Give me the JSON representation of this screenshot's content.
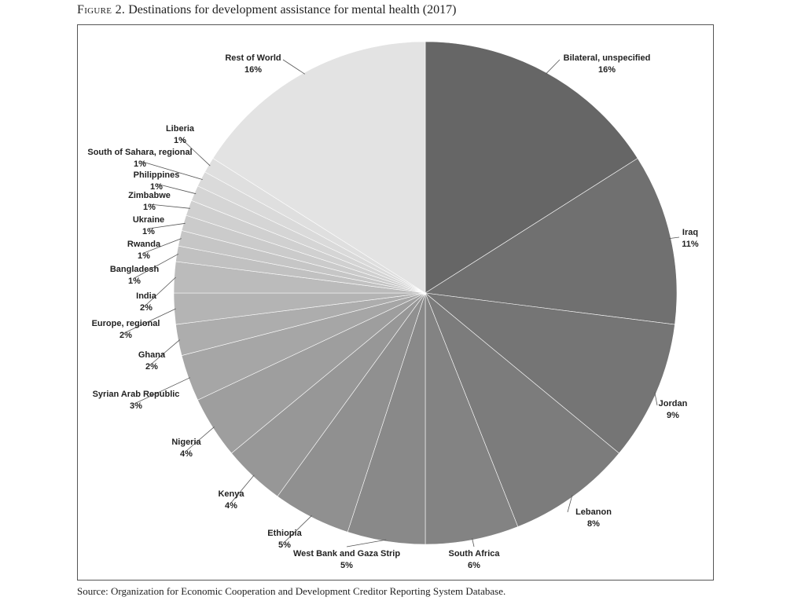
{
  "figure": {
    "label": "Figure 2.",
    "title": "Destinations for development assistance for mental health (2017)",
    "source": "Source: Organization for Economic Cooperation and Development Creditor Reporting System Database."
  },
  "chart_data": {
    "type": "pie",
    "title": "Destinations for development assistance for mental health (2017)",
    "slices": [
      {
        "name": "Bilateral, unspecified",
        "label": "16%",
        "value": 16,
        "color": "#666666"
      },
      {
        "name": "Iraq",
        "label": "11%",
        "value": 11,
        "color": "#707070"
      },
      {
        "name": "Jordan",
        "label": "9%",
        "value": 9,
        "color": "#757575"
      },
      {
        "name": "Lebanon",
        "label": "8%",
        "value": 8,
        "color": "#7c7c7c"
      },
      {
        "name": "South Africa",
        "label": "6%",
        "value": 6,
        "color": "#838383"
      },
      {
        "name": "West Bank and Gaza Strip",
        "label": "5%",
        "value": 5,
        "color": "#898989"
      },
      {
        "name": "Ethiopia",
        "label": "5%",
        "value": 5,
        "color": "#909090"
      },
      {
        "name": "Kenya",
        "label": "4%",
        "value": 4,
        "color": "#979797"
      },
      {
        "name": "Nigeria",
        "label": "4%",
        "value": 4,
        "color": "#9e9e9e"
      },
      {
        "name": "Syrian Arab Republic",
        "label": "3%",
        "value": 3,
        "color": "#a6a6a6"
      },
      {
        "name": "Ghana",
        "label": "2%",
        "value": 2,
        "color": "#adadad"
      },
      {
        "name": "Europe, regional",
        "label": "2%",
        "value": 2,
        "color": "#b4b4b4"
      },
      {
        "name": "India",
        "label": "2%",
        "value": 2,
        "color": "#bbbbbb"
      },
      {
        "name": "Bangladesh",
        "label": "1%",
        "value": 1,
        "color": "#c1c1c1"
      },
      {
        "name": "Rwanda",
        "label": "1%",
        "value": 1,
        "color": "#c6c6c6"
      },
      {
        "name": "Ukraine",
        "label": "1%",
        "value": 1,
        "color": "#cbcbcb"
      },
      {
        "name": "Zimbabwe",
        "label": "1%",
        "value": 1,
        "color": "#d0d0d0"
      },
      {
        "name": "Philippines",
        "label": "1%",
        "value": 1,
        "color": "#d5d5d5"
      },
      {
        "name": "South of Sahara, regional",
        "label": "1%",
        "value": 1,
        "color": "#dadada"
      },
      {
        "name": "Liberia",
        "label": "1%",
        "value": 1,
        "color": "#dfdfdf"
      },
      {
        "name": "Rest of World",
        "label": "16%",
        "value": 16,
        "color": "#e3e3e3"
      }
    ],
    "start": "12 o'clock, clockwise",
    "legend": "none (direct labels with leader lines)"
  }
}
